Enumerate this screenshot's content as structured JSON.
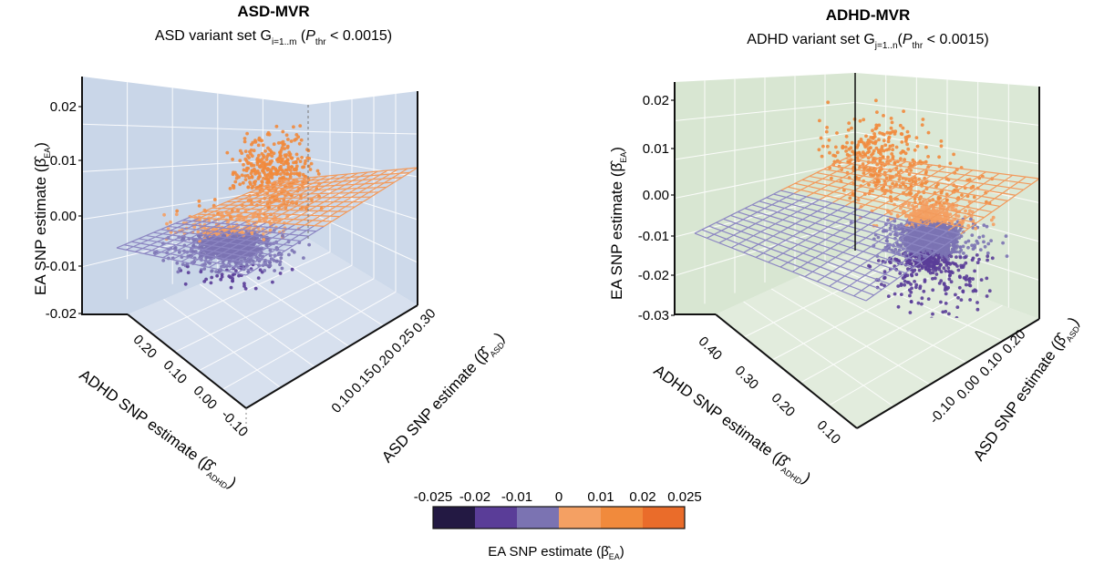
{
  "figure": {
    "colorbar": {
      "label": "EA SNP estimate (β̂EA)",
      "label_main": "EA SNP estimate (",
      "label_beta": "β̂",
      "label_sub": "EA",
      "label_close": ")",
      "ticks": [
        "-0.025",
        "-0.02",
        "-0.01",
        "0",
        "0.01",
        "0.02",
        "0.025"
      ],
      "colors": [
        "#231943",
        "#5a3d98",
        "#7b73b2",
        "#f4a063",
        "#f18a3c",
        "#ea6c2a"
      ]
    }
  },
  "chart_data": [
    {
      "type": "scatter",
      "title": "ASD-MVR",
      "subtitle": "ASD variant set Gi=1..m (Pthr < 0.0015)",
      "subtitle_parts": [
        "ASD variant set G",
        "i=1..m",
        " (",
        "P",
        "thr",
        " < 0.0015)"
      ],
      "zlabel": "EA SNP estimate (β̂EA)",
      "zlabel_parts": [
        "EA SNP estimate (",
        "β̂",
        "EA",
        ")"
      ],
      "xlabel": "ADHD SNP estimate (β̂ADHD)",
      "xlabel_parts": [
        "ADHD SNP estimate (",
        "β̂",
        "ADHD",
        ")"
      ],
      "ylabel": "ASD SNP estimate (β̂ASD)",
      "ylabel_parts": [
        "ASD SNP estimate (",
        "β̂",
        "ASD",
        ")"
      ],
      "z_ticks": [
        "0.02",
        "0.01",
        "0.00",
        "-0.01",
        "-0.02"
      ],
      "x_ticks": [
        "0.20",
        "0.10",
        "0.00",
        "-0.10"
      ],
      "y_ticks": [
        "0.30",
        "0.25",
        "0.20",
        "0.15",
        "0.10"
      ],
      "zlim": [
        -0.02,
        0.025
      ],
      "xlim": [
        -0.15,
        0.25
      ],
      "ylim": [
        0.08,
        0.33
      ],
      "background": "#c9d6e8",
      "regression_plane": true,
      "n_points_est": 2300,
      "color_by": "EA SNP estimate"
    },
    {
      "type": "scatter",
      "title": "ADHD-MVR",
      "subtitle": "ADHD variant set Gj=1..n (Pthr < 0.0015)",
      "subtitle_parts": [
        "ADHD variant set G",
        "j=1..n",
        "(",
        "P",
        "thr",
        " < 0.0015)"
      ],
      "zlabel": "EA SNP estimate (β̂EA)",
      "zlabel_parts": [
        "EA SNP estimate (",
        "β̂",
        "EA",
        ")"
      ],
      "xlabel": "ADHD SNP estimate (β̂ADHD)",
      "xlabel_parts": [
        "ADHD SNP estimate (",
        "β̂",
        "ADHD",
        ")"
      ],
      "ylabel": "ASD SNP estimate (β̂ASD)",
      "ylabel_parts": [
        "ASD SNP estimate (",
        "β̂",
        "ASD",
        ")"
      ],
      "z_ticks": [
        "0.02",
        "0.01",
        "0.00",
        "-0.01",
        "-0.02",
        "-0.03"
      ],
      "x_ticks": [
        "0.40",
        "0.30",
        "0.20",
        "0.10"
      ],
      "y_ticks": [
        "0.20",
        "0.10",
        "0.00",
        "-0.10"
      ],
      "zlim": [
        -0.03,
        0.025
      ],
      "xlim": [
        0.05,
        0.45
      ],
      "ylim": [
        -0.15,
        0.25
      ],
      "background": "#d8e6d2",
      "regression_plane": true,
      "n_points_est": 2500,
      "color_by": "EA SNP estimate"
    }
  ]
}
